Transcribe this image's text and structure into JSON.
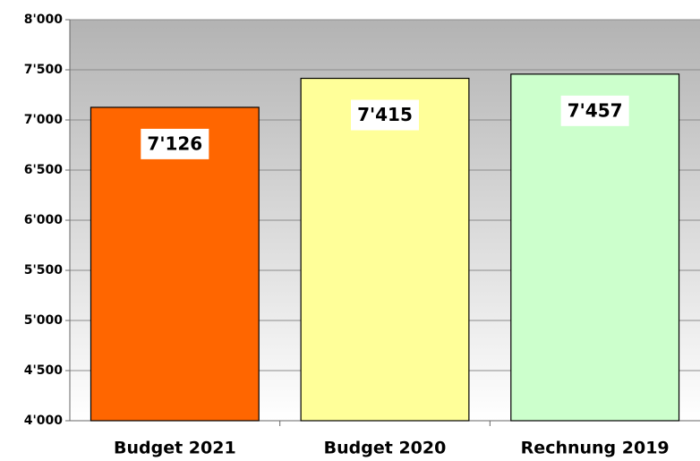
{
  "chart_data": {
    "type": "bar",
    "categories": [
      "Budget 2021",
      "Budget 2020",
      "Rechnung 2019"
    ],
    "values": [
      7126,
      7415,
      7457
    ],
    "value_labels": [
      "7'126",
      "7'415",
      "7'457"
    ],
    "colors": [
      "#ff6600",
      "#ffff99",
      "#ccffcc"
    ],
    "ylim": [
      4000,
      8000
    ],
    "yticks": [
      {
        "value": 4000,
        "label": "4'000"
      },
      {
        "value": 4500,
        "label": "4'500"
      },
      {
        "value": 5000,
        "label": "5'000"
      },
      {
        "value": 5500,
        "label": "5'500"
      },
      {
        "value": 6000,
        "label": "6'000"
      },
      {
        "value": 6500,
        "label": "6'500"
      },
      {
        "value": 7000,
        "label": "7'000"
      },
      {
        "value": 7500,
        "label": "7'500"
      },
      {
        "value": 8000,
        "label": "8'000"
      }
    ],
    "grid": true
  }
}
